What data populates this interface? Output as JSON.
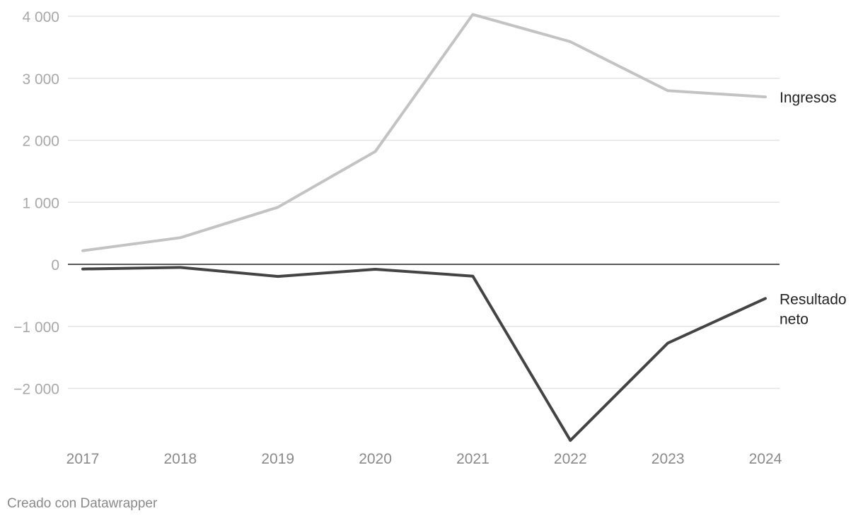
{
  "chart_data": {
    "type": "line",
    "categories": [
      "2017",
      "2018",
      "2019",
      "2020",
      "2021",
      "2022",
      "2023",
      "2024"
    ],
    "series": [
      {
        "name": "Ingresos",
        "values": [
          220,
          430,
          920,
          1820,
          4030,
          3590,
          2800,
          2700
        ],
        "color": "#c3c3c3"
      },
      {
        "name": "Resultado neto",
        "values": [
          -75,
          -50,
          -195,
          -80,
          -190,
          -2840,
          -1270,
          -550
        ],
        "color": "#444444"
      }
    ],
    "y_ticks": [
      {
        "value": 4000,
        "label": "4 000"
      },
      {
        "value": 3000,
        "label": "3 000"
      },
      {
        "value": 2000,
        "label": "2 000"
      },
      {
        "value": 1000,
        "label": "1 000"
      },
      {
        "value": 0,
        "label": "0"
      },
      {
        "value": -1000,
        "label": "−1 000"
      },
      {
        "value": -2000,
        "label": "−2 000"
      }
    ],
    "ylim": [
      -2840,
      4030
    ],
    "grid": true,
    "legend": "direct labels at line ends (right)",
    "title": "",
    "xlabel": "",
    "ylabel": ""
  },
  "footer": {
    "text": "Creado con Datawrapper"
  }
}
